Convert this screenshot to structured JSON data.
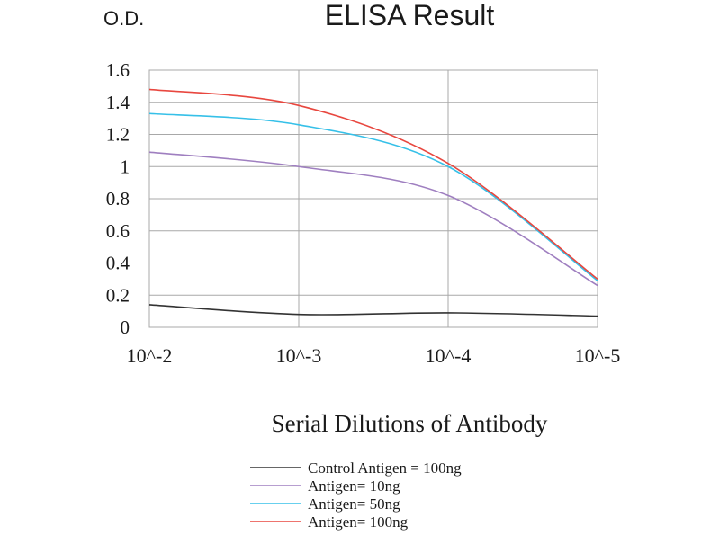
{
  "chart_data": {
    "type": "line",
    "title": "ELISA Result",
    "ylabel": "O.D.",
    "xlabel": "Serial Dilutions of Antibody",
    "categories": [
      "10^-2",
      "10^-3",
      "10^-4",
      "10^-5"
    ],
    "x_scale": "log",
    "ylim": [
      0,
      1.6
    ],
    "yticks": [
      "0",
      "0.2",
      "0.4",
      "0.6",
      "0.8",
      "1",
      "1.2",
      "1.4",
      "1.6"
    ],
    "grid": true,
    "legend_position": "bottom",
    "series": [
      {
        "name": "Control Antigen = 100ng",
        "color": "#333333",
        "values": [
          0.14,
          0.08,
          0.09,
          0.07
        ]
      },
      {
        "name": "Antigen= 10ng",
        "color": "#9f7fc0",
        "values": [
          1.09,
          1.0,
          0.82,
          0.26
        ]
      },
      {
        "name": "Antigen= 50ng",
        "color": "#36c0e8",
        "values": [
          1.33,
          1.26,
          1.0,
          0.29
        ]
      },
      {
        "name": "Antigen= 100ng",
        "color": "#e8473f",
        "values": [
          1.48,
          1.38,
          1.02,
          0.3
        ]
      }
    ]
  }
}
